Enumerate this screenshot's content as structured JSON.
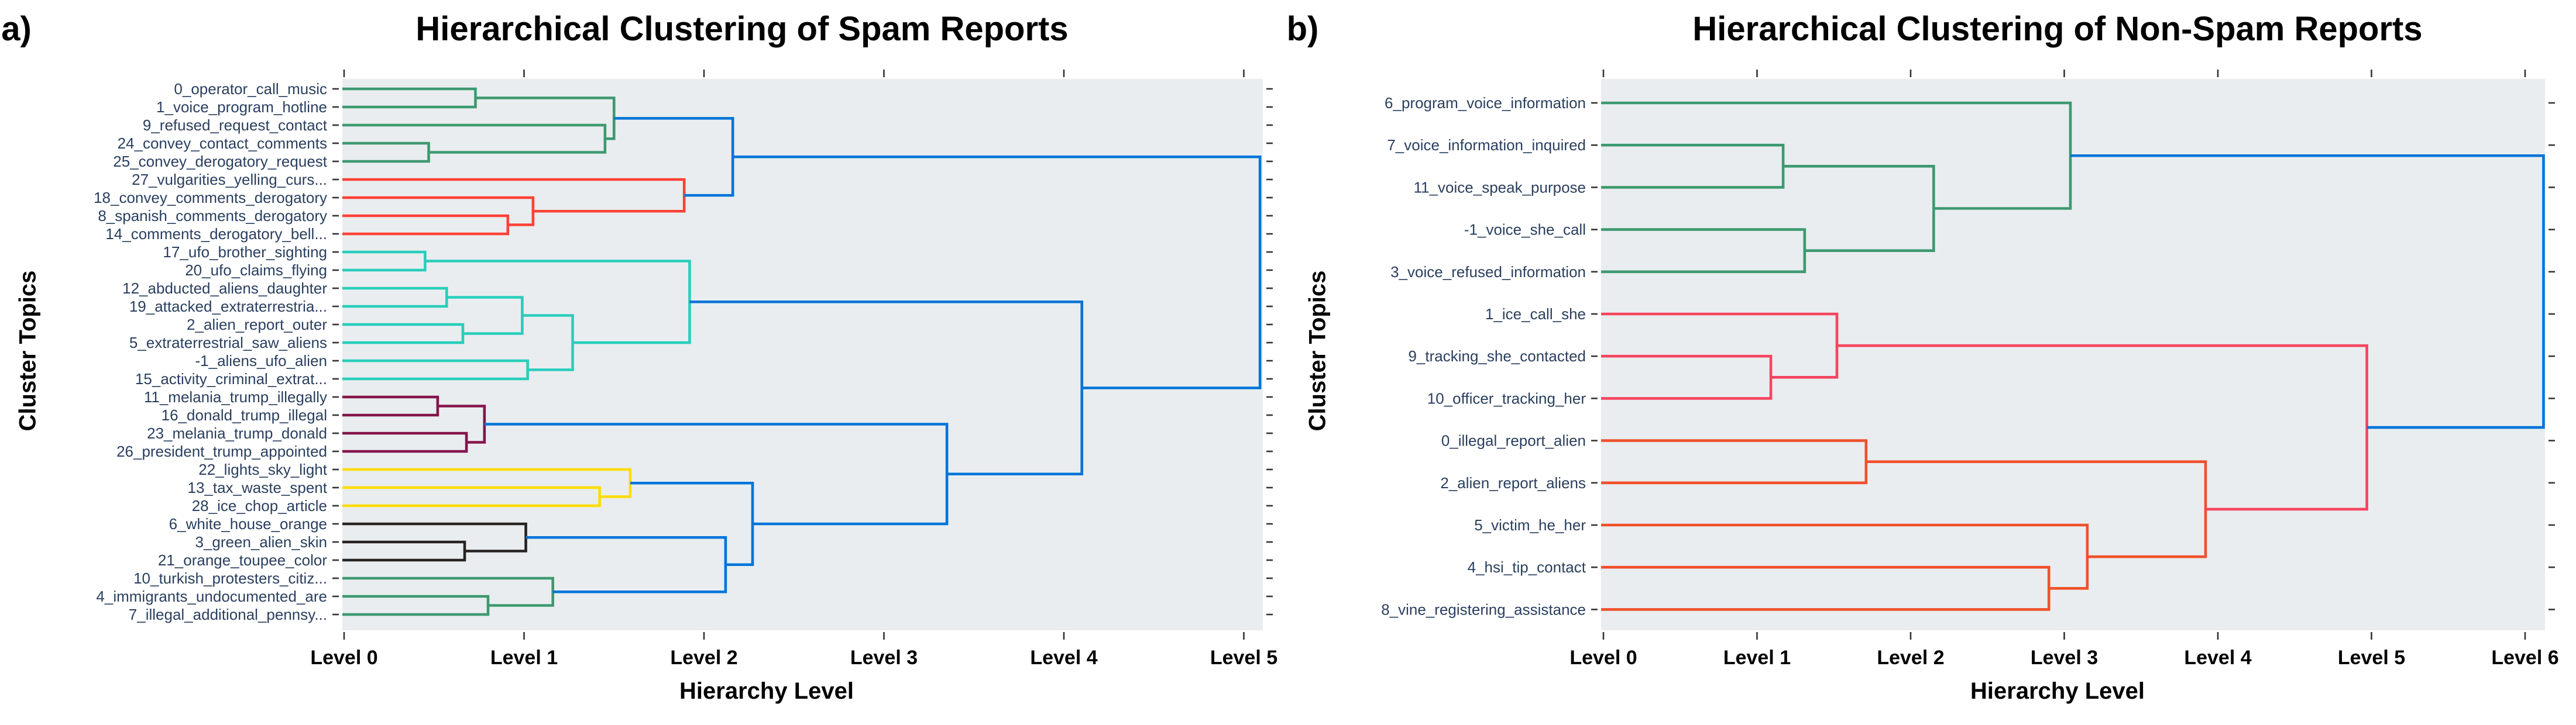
{
  "colors": {
    "figure_background": "#ffffff",
    "panel_background": "#E9EDEF",
    "leaf_label": "#2a3f5f",
    "tick": "#333333",
    "axis_text": "#000000"
  },
  "palette": {
    "blue": "#0074D9",
    "green": "#3D9970",
    "red": "#FF4136",
    "cyan": "#28CEBB",
    "maroon": "#85144B",
    "yellow": "#FFDC00",
    "black": "#282323",
    "pink": "#F5455F",
    "orange": "#F0502C"
  },
  "chart_data": [
    {
      "type": "dendrogram",
      "orientation": "left-to-right",
      "corner_label": "a)",
      "title": "Hierarchical Clustering of Spam Reports",
      "xlabel": "Hierarchy Level",
      "ylabel": "Cluster Topics",
      "x_ticks": [
        "Level 0",
        "Level 1",
        "Level 2",
        "Level 3",
        "Level 4",
        "Level 5"
      ],
      "x_range": [
        0,
        5.1
      ],
      "grid": false,
      "legend": "none",
      "leaves": [
        {
          "label": "0_operator_call_music",
          "cluster": "green"
        },
        {
          "label": "1_voice_program_hotline",
          "cluster": "green"
        },
        {
          "label": "9_refused_request_contact",
          "cluster": "green"
        },
        {
          "label": "24_convey_contact_comments",
          "cluster": "green"
        },
        {
          "label": "25_convey_derogatory_request",
          "cluster": "green"
        },
        {
          "label": "27_vulgarities_yelling_curs...",
          "cluster": "red"
        },
        {
          "label": "18_convey_comments_derogatory",
          "cluster": "red"
        },
        {
          "label": "8_spanish_comments_derogatory",
          "cluster": "red"
        },
        {
          "label": "14_comments_derogatory_bell...",
          "cluster": "red"
        },
        {
          "label": "17_ufo_brother_sighting",
          "cluster": "cyan"
        },
        {
          "label": "20_ufo_claims_flying",
          "cluster": "cyan"
        },
        {
          "label": "12_abducted_aliens_daughter",
          "cluster": "cyan"
        },
        {
          "label": "19_attacked_extraterrestria...",
          "cluster": "cyan"
        },
        {
          "label": "2_alien_report_outer",
          "cluster": "cyan"
        },
        {
          "label": "5_extraterrestrial_saw_aliens",
          "cluster": "cyan"
        },
        {
          "label": "-1_aliens_ufo_alien",
          "cluster": "cyan"
        },
        {
          "label": "15_activity_criminal_extrat...",
          "cluster": "cyan"
        },
        {
          "label": "11_melania_trump_illegally",
          "cluster": "maroon"
        },
        {
          "label": "16_donald_trump_illegal",
          "cluster": "maroon"
        },
        {
          "label": "23_melania_trump_donald",
          "cluster": "maroon"
        },
        {
          "label": "26_president_trump_appointed",
          "cluster": "maroon"
        },
        {
          "label": "22_lights_sky_light",
          "cluster": "yellow"
        },
        {
          "label": "13_tax_waste_spent",
          "cluster": "yellow"
        },
        {
          "label": "28_ice_chop_article",
          "cluster": "yellow"
        },
        {
          "label": "6_white_house_orange",
          "cluster": "black"
        },
        {
          "label": "3_green_alien_skin",
          "cluster": "black"
        },
        {
          "label": "21_orange_toupee_color",
          "cluster": "black"
        },
        {
          "label": "10_turkish_protesters_citiz...",
          "cluster": "green"
        },
        {
          "label": "4_immigrants_undocumented_are",
          "cluster": "green"
        },
        {
          "label": "7_illegal_additional_pennsy...",
          "cluster": "green"
        }
      ],
      "merges": [
        {
          "a": "L0",
          "b": "L1",
          "level": 0.73,
          "cluster": "green"
        },
        {
          "a": "L3",
          "b": "L4",
          "level": 0.47,
          "cluster": "green"
        },
        {
          "a": "L2",
          "b": "M1",
          "level": 1.45,
          "cluster": "green"
        },
        {
          "a": "M0",
          "b": "M2",
          "level": 1.5,
          "cluster": "green"
        },
        {
          "a": "L7",
          "b": "L8",
          "level": 0.91,
          "cluster": "red"
        },
        {
          "a": "L6",
          "b": "M4",
          "level": 1.05,
          "cluster": "red"
        },
        {
          "a": "L5",
          "b": "M5",
          "level": 1.89,
          "cluster": "red"
        },
        {
          "a": "M3",
          "b": "M6",
          "level": 2.16,
          "cluster": "blue"
        },
        {
          "a": "L9",
          "b": "L10",
          "level": 0.45,
          "cluster": "cyan"
        },
        {
          "a": "L11",
          "b": "L12",
          "level": 0.57,
          "cluster": "cyan"
        },
        {
          "a": "L13",
          "b": "L14",
          "level": 0.66,
          "cluster": "cyan"
        },
        {
          "a": "M9",
          "b": "M10",
          "level": 0.99,
          "cluster": "cyan"
        },
        {
          "a": "L15",
          "b": "L16",
          "level": 1.02,
          "cluster": "cyan"
        },
        {
          "a": "M11",
          "b": "M12",
          "level": 1.27,
          "cluster": "cyan"
        },
        {
          "a": "M8",
          "b": "M13",
          "level": 1.92,
          "cluster": "cyan"
        },
        {
          "a": "L17",
          "b": "L18",
          "level": 0.52,
          "cluster": "maroon"
        },
        {
          "a": "L19",
          "b": "L20",
          "level": 0.68,
          "cluster": "maroon"
        },
        {
          "a": "M15",
          "b": "M16",
          "level": 0.78,
          "cluster": "maroon"
        },
        {
          "a": "L22",
          "b": "L23",
          "level": 1.42,
          "cluster": "yellow"
        },
        {
          "a": "L21",
          "b": "M18",
          "level": 1.59,
          "cluster": "yellow"
        },
        {
          "a": "L25",
          "b": "L26",
          "level": 0.67,
          "cluster": "black"
        },
        {
          "a": "L24",
          "b": "M20",
          "level": 1.01,
          "cluster": "black"
        },
        {
          "a": "L28",
          "b": "L29",
          "level": 0.8,
          "cluster": "green"
        },
        {
          "a": "L27",
          "b": "M22",
          "level": 1.16,
          "cluster": "green"
        },
        {
          "a": "M21",
          "b": "M23",
          "level": 2.12,
          "cluster": "blue"
        },
        {
          "a": "M19",
          "b": "M24",
          "level": 2.27,
          "cluster": "blue"
        },
        {
          "a": "M17",
          "b": "M25",
          "level": 3.35,
          "cluster": "blue"
        },
        {
          "a": "M14",
          "b": "M26",
          "level": 4.1,
          "cluster": "blue"
        },
        {
          "a": "M7",
          "b": "M27",
          "level": 5.09,
          "cluster": "blue"
        }
      ]
    },
    {
      "type": "dendrogram",
      "orientation": "left-to-right",
      "corner_label": "b)",
      "title": "Hierarchical Clustering of Non-Spam Reports",
      "xlabel": "Hierarchy Level",
      "ylabel": "Cluster Topics",
      "x_ticks": [
        "Level 0",
        "Level 1",
        "Level 2",
        "Level 3",
        "Level 4",
        "Level 5",
        "Level 6"
      ],
      "x_range": [
        0,
        6.2
      ],
      "grid": false,
      "legend": "none",
      "leaves": [
        {
          "label": "6_program_voice_information",
          "cluster": "green"
        },
        {
          "label": "7_voice_information_inquired",
          "cluster": "green"
        },
        {
          "label": "11_voice_speak_purpose",
          "cluster": "green"
        },
        {
          "label": "-1_voice_she_call",
          "cluster": "green"
        },
        {
          "label": "3_voice_refused_information",
          "cluster": "green"
        },
        {
          "label": "1_ice_call_she",
          "cluster": "pink"
        },
        {
          "label": "9_tracking_she_contacted",
          "cluster": "pink"
        },
        {
          "label": "10_officer_tracking_her",
          "cluster": "pink"
        },
        {
          "label": "0_illegal_report_alien",
          "cluster": "orange"
        },
        {
          "label": "2_alien_report_aliens",
          "cluster": "orange"
        },
        {
          "label": "5_victim_he_her",
          "cluster": "orange"
        },
        {
          "label": "4_hsi_tip_contact",
          "cluster": "orange"
        },
        {
          "label": "8_vine_registering_assistance",
          "cluster": "orange"
        }
      ],
      "merges": [
        {
          "a": "L1",
          "b": "L2",
          "level": 1.17,
          "cluster": "green"
        },
        {
          "a": "L3",
          "b": "L4",
          "level": 1.31,
          "cluster": "green"
        },
        {
          "a": "M0",
          "b": "M1",
          "level": 2.15,
          "cluster": "green"
        },
        {
          "a": "L0",
          "b": "M2",
          "level": 3.04,
          "cluster": "green"
        },
        {
          "a": "L6",
          "b": "L7",
          "level": 1.09,
          "cluster": "pink"
        },
        {
          "a": "L5",
          "b": "M4",
          "level": 1.52,
          "cluster": "pink"
        },
        {
          "a": "L8",
          "b": "L9",
          "level": 1.71,
          "cluster": "orange"
        },
        {
          "a": "L11",
          "b": "L12",
          "level": 2.9,
          "cluster": "orange"
        },
        {
          "a": "L10",
          "b": "M7",
          "level": 3.15,
          "cluster": "orange"
        },
        {
          "a": "M6",
          "b": "M8",
          "level": 3.92,
          "cluster": "orange"
        },
        {
          "a": "M5",
          "b": "M9",
          "level": 4.97,
          "cluster": "pink"
        },
        {
          "a": "M3",
          "b": "M10",
          "level": 6.12,
          "cluster": "blue"
        }
      ]
    }
  ]
}
